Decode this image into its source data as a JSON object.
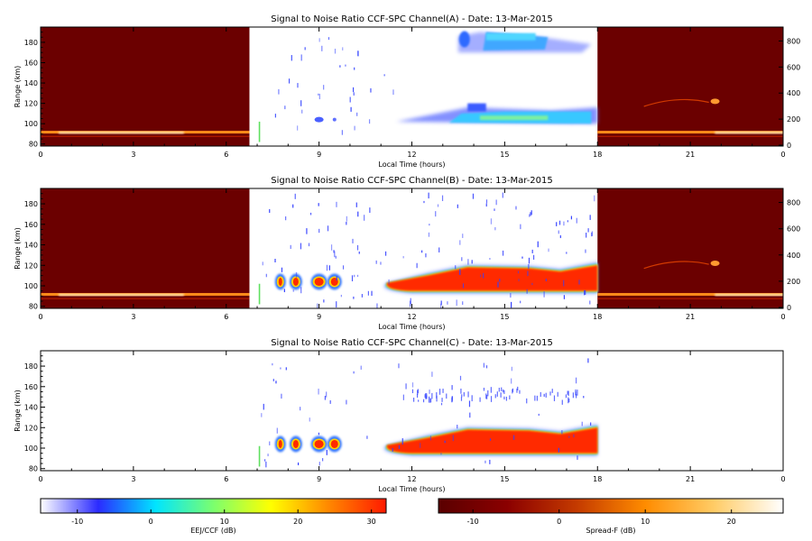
{
  "chart_data": [
    {
      "type": "heatmap",
      "title": "Signal to Noise Ratio CCF-SPC Channel(A) - Date: 13-Mar-2015",
      "xlabel": "Local Time (hours)",
      "ylabel": "Range (km)",
      "xlim": [
        0,
        24
      ],
      "ylim": [
        78,
        195
      ],
      "x_ticks": [
        "0",
        "3",
        "6",
        "9",
        "12",
        "15",
        "18",
        "21",
        "0"
      ],
      "y_ticks": [
        80,
        100,
        120,
        140,
        160,
        180
      ],
      "right_ticks": [
        0,
        200,
        400,
        600,
        800
      ],
      "spreadf_regions": [
        [
          0,
          6.75
        ],
        [
          18,
          24
        ]
      ],
      "eej_windows": [
        [
          7,
          18
        ]
      ]
    },
    {
      "type": "heatmap",
      "title": "Signal to Noise Ratio CCF-SPC Channel(B) - Date: 13-Mar-2015",
      "xlabel": "Local Time (hours)",
      "ylabel": "Range (km)",
      "xlim": [
        0,
        24
      ],
      "ylim": [
        78,
        195
      ],
      "x_ticks": [
        "0",
        "3",
        "6",
        "9",
        "12",
        "15",
        "18",
        "21",
        "0"
      ],
      "y_ticks": [
        80,
        100,
        120,
        140,
        160,
        180
      ],
      "right_ticks": [
        0,
        200,
        400,
        600,
        800
      ],
      "spreadf_regions": [
        [
          0,
          6.75
        ],
        [
          18,
          24
        ]
      ],
      "eej_windows": [
        [
          7,
          18
        ]
      ]
    },
    {
      "type": "heatmap",
      "title": "Signal to Noise Ratio CCF-SPC Channel(C) - Date: 13-Mar-2015",
      "xlabel": "Local Time (hours)",
      "ylabel": "Range (km)",
      "xlim": [
        0,
        24
      ],
      "ylim": [
        78,
        195
      ],
      "x_ticks": [
        "0",
        "3",
        "6",
        "9",
        "12",
        "15",
        "18",
        "21",
        "0"
      ],
      "y_ticks": [
        80,
        100,
        120,
        140,
        160,
        180
      ],
      "right_ticks": [],
      "spreadf_regions": [],
      "eej_windows": [
        [
          7,
          18
        ]
      ]
    }
  ],
  "colorbars": [
    {
      "label": "EEJ/CCF (dB)",
      "range": [
        -15,
        32
      ],
      "ticks": [
        -10,
        0,
        10,
        20,
        30
      ],
      "stops": [
        "#ffffff",
        "#2b2bff",
        "#00e5ff",
        "#7bff6e",
        "#ffff00",
        "#ff8800",
        "#ff1a00"
      ]
    },
    {
      "label": "Spread-F (dB)",
      "range": [
        -14,
        26
      ],
      "ticks": [
        -10,
        0,
        10,
        20
      ],
      "stops": [
        "#5a0000",
        "#8b0000",
        "#c43a00",
        "#ff8c00",
        "#ffcc66",
        "#ffffff"
      ]
    }
  ],
  "colors": {
    "spreadf_background": "#6b0000",
    "axis": "#000000"
  }
}
